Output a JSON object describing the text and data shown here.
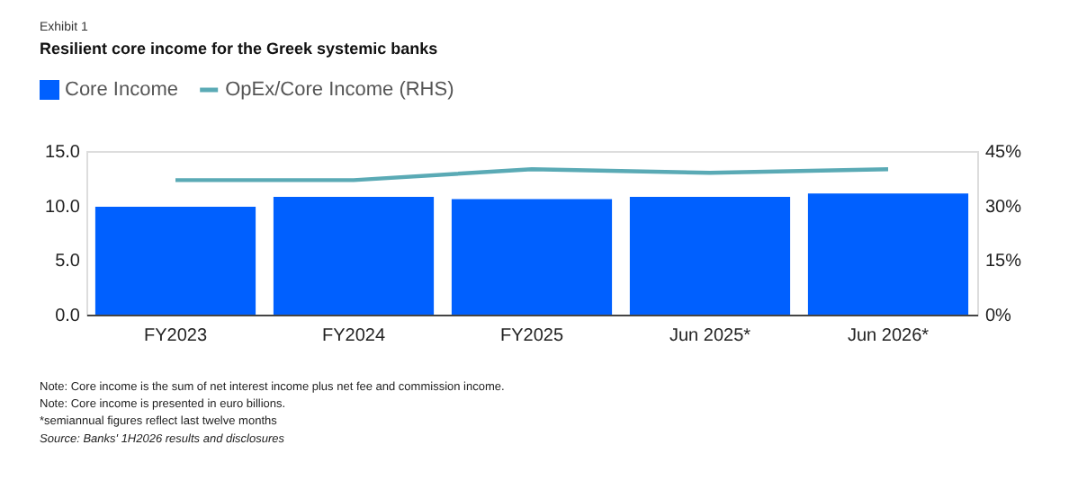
{
  "chart_data": {
    "type": "bar",
    "subtitle": "Exhibit 1",
    "title": "Resilient core income for the Greek systemic banks",
    "categories": [
      "FY2023",
      "FY2024",
      "FY2025",
      "Jun 2025*",
      "Jun 2026*"
    ],
    "series": [
      {
        "name": "Core Income",
        "color": "#0060ff",
        "values": [
          9.9,
          10.8,
          10.6,
          10.8,
          11.1
        ]
      },
      {
        "name": "OpEx/Core Income (RHS)",
        "type": "line",
        "axis": "y2",
        "color": "#5aaab5",
        "values": [
          37,
          37,
          40,
          39,
          40
        ]
      }
    ],
    "ylim": [
      0,
      15
    ],
    "yticks": [
      {
        "value": 0,
        "label": "0.0"
      },
      {
        "value": 5,
        "label": "5.0"
      },
      {
        "value": 10,
        "label": "10.0"
      },
      {
        "value": 15,
        "label": "15.0"
      }
    ],
    "y2lim": [
      0,
      45
    ],
    "y2ticks": [
      {
        "value": 0,
        "label": "0%"
      },
      {
        "value": 15,
        "label": "15%"
      },
      {
        "value": 30,
        "label": "30%"
      },
      {
        "value": 45,
        "label": "45%"
      }
    ],
    "legend": "top left",
    "grid": false,
    "marker": "none",
    "line_style": "solid",
    "annotations": [
      "Note: Core income is the sum of net interest income plus net fee and commission income.",
      "Note: Core income is presented in euro billions.",
      "*semiannual figures reflect last twelve months",
      "Source: Banks' 1H2026 results and disclosures"
    ]
  }
}
